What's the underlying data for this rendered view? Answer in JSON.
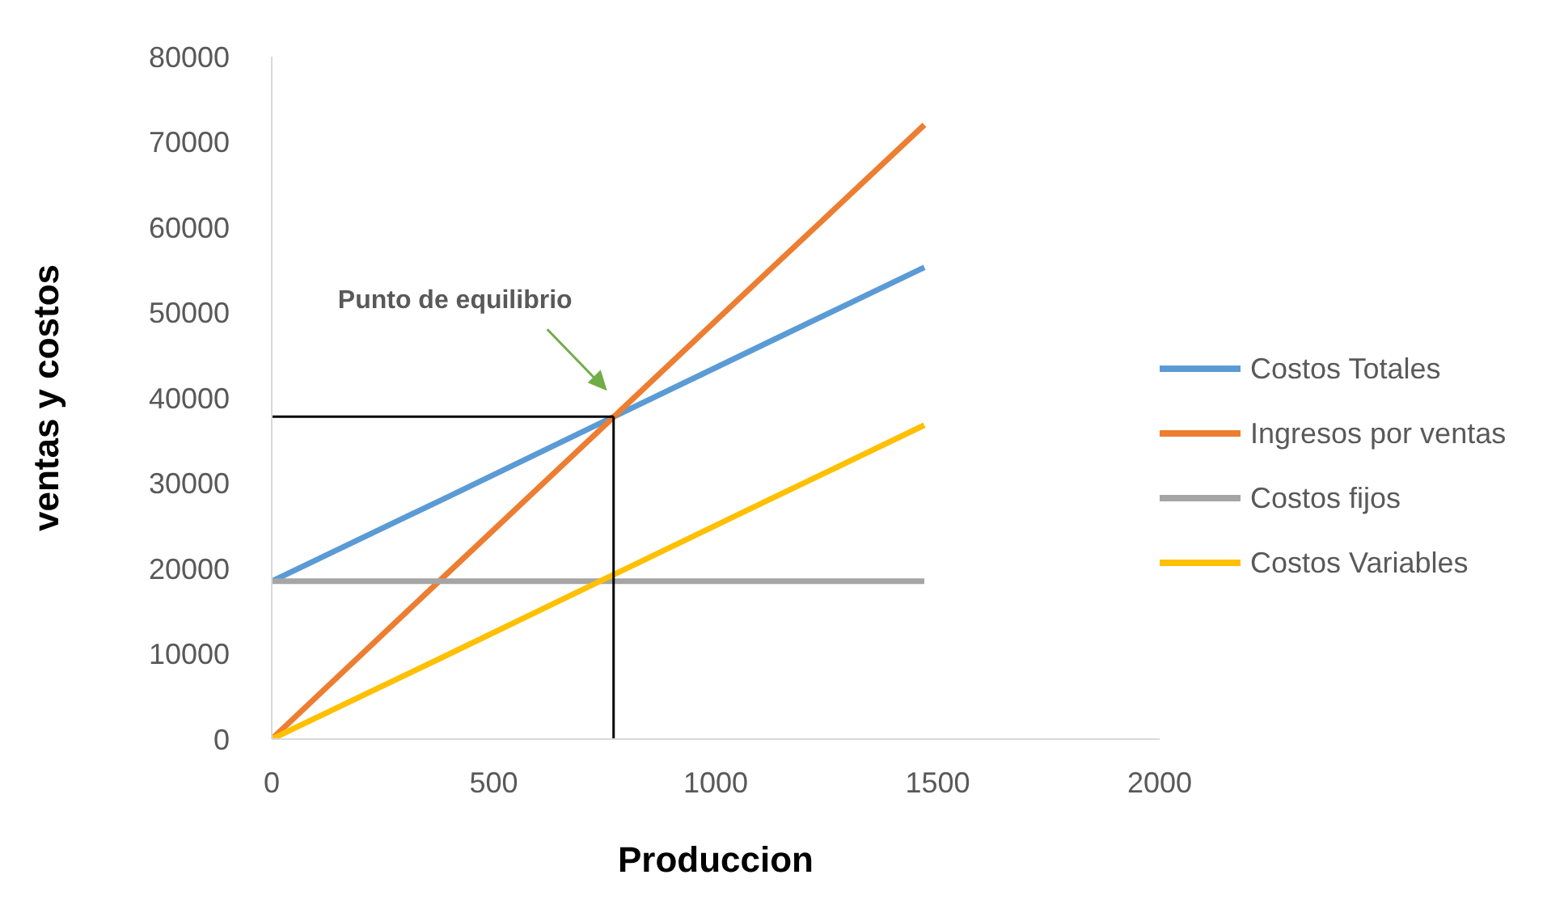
{
  "chart_data": {
    "type": "line",
    "xlabel": "Produccion",
    "ylabel": "ventas y costos",
    "x": [
      0,
      385,
      771,
      1130,
      1470
    ],
    "series": [
      {
        "name": "Costos Totales",
        "color": "#5b9bd5",
        "values": [
          18500,
          28100,
          37800,
          46800,
          55300
        ]
      },
      {
        "name": "Ingresos por ventas",
        "color": "#ed7d31",
        "values": [
          0,
          18900,
          37800,
          55400,
          72000
        ]
      },
      {
        "name": "Costos fijos",
        "color": "#a5a5a5",
        "values": [
          18500,
          18500,
          18500,
          18500,
          18500
        ]
      },
      {
        "name": "Costos Variables",
        "color": "#ffc000",
        "values": [
          0,
          9600,
          19300,
          28300,
          36800
        ]
      }
    ],
    "xlim": [
      0,
      2000
    ],
    "xticks": [
      0,
      500,
      1000,
      1500,
      2000
    ],
    "ylim": [
      0,
      80000
    ],
    "yticks": [
      0,
      10000,
      20000,
      30000,
      40000,
      50000,
      60000,
      70000,
      80000
    ],
    "ref_lines": [
      {
        "axis": "x",
        "value": 770,
        "color": "#000000"
      },
      {
        "axis": "y",
        "value": 37800,
        "color": "#000000"
      }
    ],
    "annotations": [
      "Punto de equilibrio"
    ],
    "grid": false,
    "legend": "right",
    "marker": "none",
    "line_style": "solid"
  }
}
